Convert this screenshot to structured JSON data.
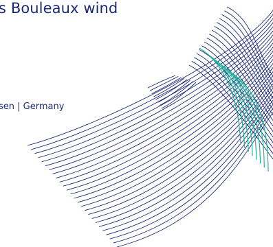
{
  "headline": "s Bouleaux wind",
  "location": "sen | Germany",
  "graphic": {
    "icon": "wave-lines-pattern",
    "colors": {
      "navy": "#1b2a78",
      "teal": "#23b39b"
    }
  }
}
